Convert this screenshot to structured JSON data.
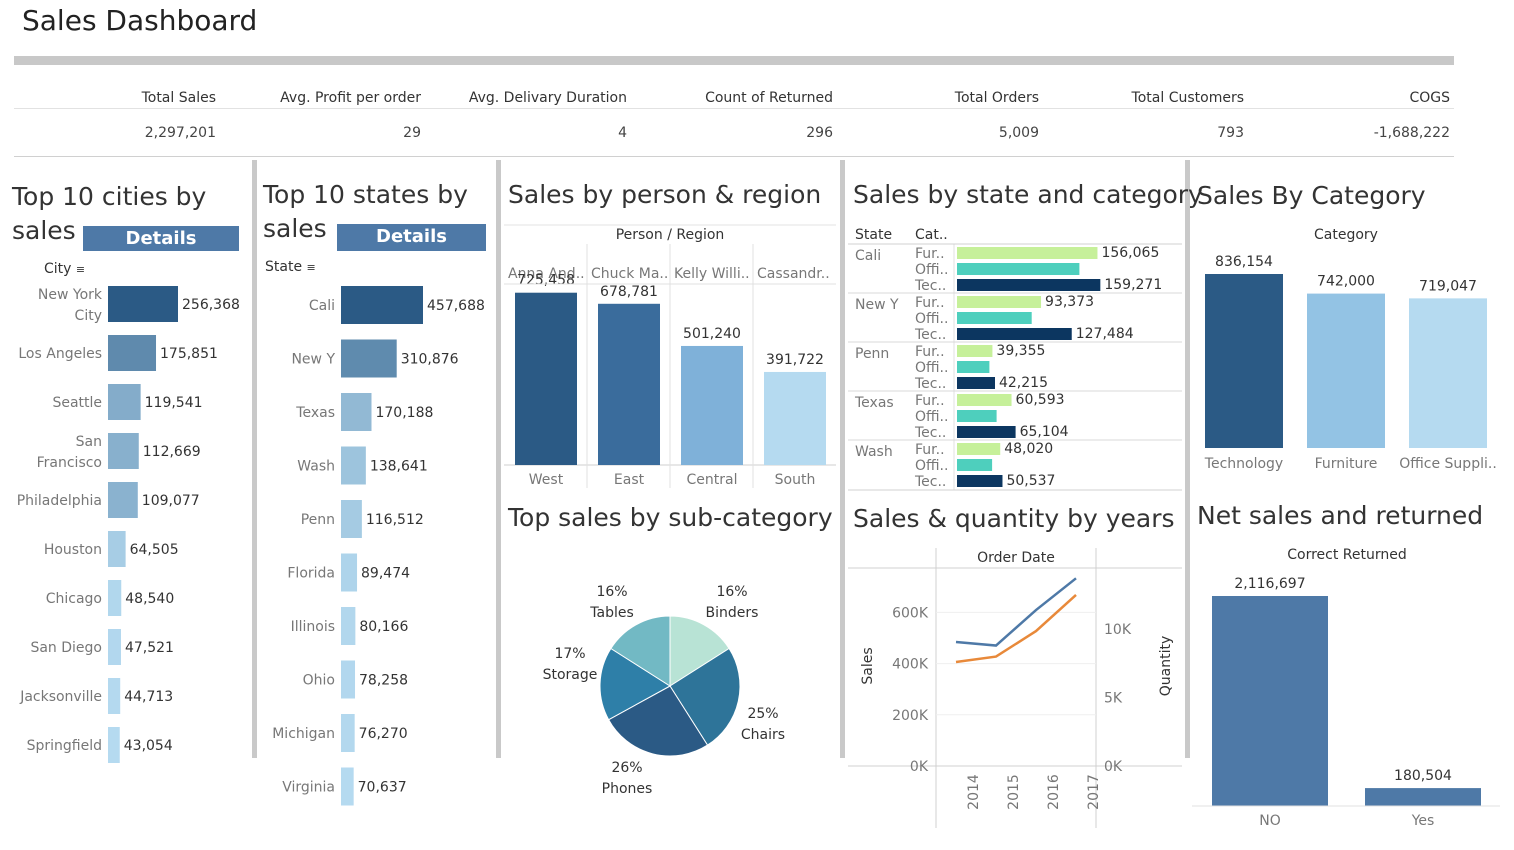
{
  "title": "Sales Dashboard",
  "kpis": [
    {
      "label": "Total Sales",
      "value": "2,297,201"
    },
    {
      "label": "Avg. Profit per order",
      "value": "29"
    },
    {
      "label": "Avg. Delivary Duration",
      "value": "4"
    },
    {
      "label": "Count of Returned",
      "value": "296"
    },
    {
      "label": "Total Orders",
      "value": "5,009"
    },
    {
      "label": "Total Customers",
      "value": "793"
    },
    {
      "label": "COGS",
      "value": "-1,688,222"
    }
  ],
  "details_label": "Details",
  "sort_icon": "sort-descending-icon",
  "colors": {
    "dark": "#2b5a85",
    "mid": "#4e79a7",
    "light": "#7fb1d9",
    "pale": "#b5daf0",
    "green": "#c6f09a",
    "teal": "#4ecfbd",
    "navy": "#0c3660",
    "orange": "#e8893a",
    "line_blue": "#4e79a7"
  },
  "chart_data": [
    {
      "type": "bar",
      "title": "Top 10 cities by sales",
      "dimension": "City",
      "categories": [
        "New York City",
        "Los Angeles",
        "Seattle",
        "San Francisco",
        "Philadelphia",
        "Houston",
        "Chicago",
        "San Diego",
        "Jacksonville",
        "Springfield"
      ],
      "values": [
        256368,
        175851,
        119541,
        112669,
        109077,
        64505,
        48540,
        47521,
        44713,
        43054
      ],
      "labels": [
        "256,368",
        "175,851",
        "119,541",
        "112,669",
        "109,077",
        "64,505",
        "48,540",
        "47,521",
        "44,713",
        "43,054"
      ],
      "orientation": "horizontal"
    },
    {
      "type": "bar",
      "title": "Top 10 states by sales",
      "dimension": "State",
      "categories": [
        "Cali",
        "New Y",
        "Texas",
        "Wash",
        "Penn",
        "Florida",
        "Illinois",
        "Ohio",
        "Michigan",
        "Virginia"
      ],
      "values": [
        457688,
        310876,
        170188,
        138641,
        116512,
        89474,
        80166,
        78258,
        76270,
        70637
      ],
      "labels": [
        "457,688",
        "310,876",
        "170,188",
        "138,641",
        "116,512",
        "89,474",
        "80,166",
        "78,258",
        "76,270",
        "70,637"
      ],
      "orientation": "horizontal"
    },
    {
      "type": "bar",
      "title": "Sales by person & region",
      "header": "Person / Region",
      "persons": [
        "Anna And..",
        "Chuck Ma..",
        "Kelly Willi..",
        "Cassandr.."
      ],
      "categories": [
        "West",
        "East",
        "Central",
        "South"
      ],
      "values": [
        725458,
        678781,
        501240,
        391722
      ],
      "labels": [
        "725,458",
        "678,781",
        "501,240",
        "391,722"
      ]
    },
    {
      "type": "bar",
      "title": "Sales by state and category",
      "col_state": "State",
      "col_cat": "Cat..",
      "states": [
        "Cali",
        "New Y",
        "Penn",
        "Texas",
        "Wash"
      ],
      "category_labels": [
        "Fur..",
        "Offi..",
        "Tec.."
      ],
      "series": [
        {
          "name": "Fur..",
          "values": [
            156065,
            93373,
            39355,
            60593,
            48020
          ]
        },
        {
          "name": "Offi..",
          "values": [
            136000,
            83000,
            36000,
            44000,
            39000
          ]
        },
        {
          "name": "Tec..",
          "values": [
            159271,
            127484,
            42215,
            65104,
            50537
          ]
        }
      ],
      "value_labels": [
        [
          "156,065",
          "",
          "159,271"
        ],
        [
          "93,373",
          "",
          "127,484"
        ],
        [
          "39,355",
          "",
          "42,215"
        ],
        [
          "60,593",
          "",
          "65,104"
        ],
        [
          "48,020",
          "",
          "50,537"
        ]
      ],
      "orientation": "horizontal"
    },
    {
      "type": "bar",
      "title": "Sales By Category",
      "header": "Category",
      "categories": [
        "Technology",
        "Furniture",
        "Office Suppli.."
      ],
      "values": [
        836154,
        742000,
        719047
      ],
      "labels": [
        "836,154",
        "742,000",
        "719,047"
      ]
    },
    {
      "type": "pie",
      "title": "Top sales by sub-category",
      "slices": [
        {
          "name": "Binders",
          "pct": "16%",
          "value": 16
        },
        {
          "name": "Chairs",
          "pct": "25%",
          "value": 25
        },
        {
          "name": "Phones",
          "pct": "26%",
          "value": 26
        },
        {
          "name": "Storage",
          "pct": "17%",
          "value": 17
        },
        {
          "name": "Tables",
          "pct": "16%",
          "value": 16
        }
      ]
    },
    {
      "type": "line",
      "title": "Sales & quantity by years",
      "header": "Order Date",
      "x": [
        "2014",
        "2015",
        "2016",
        "2017"
      ],
      "ylabel": "Sales",
      "y2label": "Quantity",
      "y_ticks": [
        "0K",
        "200K",
        "400K",
        "600K"
      ],
      "y2_ticks": [
        "0K",
        "5K",
        "10K"
      ],
      "ylim": [
        0,
        750000
      ],
      "y2lim": [
        0,
        14000
      ],
      "series": [
        {
          "name": "Sales",
          "axis": "left",
          "values": [
            484247,
            470533,
            609206,
            733215
          ]
        },
        {
          "name": "Quantity",
          "axis": "right",
          "values": [
            7581,
            7979,
            9837,
            12476
          ]
        }
      ]
    },
    {
      "type": "bar",
      "title": "Net sales and returned",
      "header": "Correct Returned",
      "categories": [
        "NO",
        "Yes"
      ],
      "values": [
        2116697,
        180504
      ],
      "labels": [
        "2,116,697",
        "180,504"
      ]
    }
  ]
}
